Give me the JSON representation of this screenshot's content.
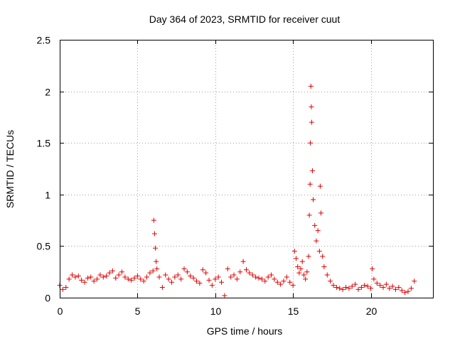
{
  "chart_data": {
    "type": "scatter",
    "title": "Day 364 of 2023, SRMTID for receiver cuut",
    "xlabel": "GPS time / hours",
    "ylabel": "SRMTID / TECUs",
    "xlim": [
      0,
      24
    ],
    "ylim": [
      0,
      2.5
    ],
    "xticks": [
      0,
      5,
      10,
      15,
      20
    ],
    "xtick_labels": [
      "0",
      "5",
      "10",
      "15",
      "20"
    ],
    "yticks": [
      0,
      0.5,
      1,
      1.5,
      2,
      2.5
    ],
    "ytick_labels": [
      "0",
      "0.5",
      "1",
      "1.5",
      "2",
      "2.5"
    ],
    "grid": true,
    "marker": "plus",
    "color": "#e00000",
    "series": [
      {
        "name": "SRMTID",
        "x": [
          0.0,
          0.2,
          0.4,
          0.6,
          0.8,
          1.0,
          1.2,
          1.4,
          1.6,
          1.8,
          2.0,
          2.2,
          2.4,
          2.6,
          2.8,
          3.0,
          3.2,
          3.4,
          3.6,
          3.8,
          4.0,
          4.2,
          4.4,
          4.6,
          4.8,
          5.0,
          5.2,
          5.4,
          5.6,
          5.8,
          6.0,
          6.05,
          6.1,
          6.15,
          6.2,
          6.25,
          6.4,
          6.6,
          6.8,
          7.0,
          7.2,
          7.4,
          7.6,
          7.8,
          8.0,
          8.2,
          8.4,
          8.6,
          8.8,
          9.0,
          9.2,
          9.4,
          9.6,
          9.8,
          10.0,
          10.2,
          10.4,
          10.6,
          10.8,
          11.0,
          11.2,
          11.4,
          11.6,
          11.8,
          12.0,
          12.2,
          12.4,
          12.6,
          12.8,
          13.0,
          13.2,
          13.4,
          13.6,
          13.8,
          14.0,
          14.2,
          14.4,
          14.6,
          14.8,
          15.0,
          15.1,
          15.2,
          15.3,
          15.4,
          15.5,
          15.6,
          15.7,
          15.8,
          15.9,
          16.0,
          16.05,
          16.1,
          16.12,
          16.15,
          16.18,
          16.2,
          16.25,
          16.3,
          16.4,
          16.5,
          16.6,
          16.7,
          16.75,
          16.8,
          16.9,
          17.0,
          17.2,
          17.4,
          17.6,
          17.8,
          18.0,
          18.2,
          18.4,
          18.6,
          18.8,
          19.0,
          19.2,
          19.4,
          19.6,
          19.8,
          20.0,
          20.1,
          20.2,
          20.4,
          20.6,
          20.8,
          21.0,
          21.2,
          21.4,
          21.6,
          21.8,
          22.0,
          22.2,
          22.4,
          22.6,
          22.8
        ],
        "y": [
          0.12,
          0.08,
          0.1,
          0.18,
          0.22,
          0.2,
          0.21,
          0.17,
          0.15,
          0.19,
          0.2,
          0.16,
          0.18,
          0.22,
          0.2,
          0.21,
          0.24,
          0.26,
          0.19,
          0.22,
          0.25,
          0.2,
          0.18,
          0.17,
          0.19,
          0.21,
          0.18,
          0.16,
          0.2,
          0.24,
          0.26,
          0.75,
          0.62,
          0.48,
          0.35,
          0.28,
          0.2,
          0.1,
          0.22,
          0.18,
          0.15,
          0.2,
          0.22,
          0.18,
          0.28,
          0.25,
          0.21,
          0.19,
          0.16,
          0.14,
          0.27,
          0.24,
          0.17,
          0.12,
          0.18,
          0.2,
          0.15,
          0.02,
          0.28,
          0.2,
          0.22,
          0.18,
          0.25,
          0.35,
          0.27,
          0.24,
          0.22,
          0.2,
          0.19,
          0.18,
          0.16,
          0.2,
          0.22,
          0.18,
          0.15,
          0.13,
          0.16,
          0.2,
          0.15,
          0.12,
          0.45,
          0.38,
          0.3,
          0.24,
          0.28,
          0.35,
          0.22,
          0.18,
          0.25,
          0.4,
          0.8,
          1.1,
          1.5,
          2.05,
          1.85,
          1.7,
          1.23,
          0.95,
          0.7,
          0.55,
          0.65,
          0.45,
          1.08,
          0.82,
          0.4,
          0.3,
          0.22,
          0.16,
          0.12,
          0.1,
          0.09,
          0.08,
          0.1,
          0.09,
          0.11,
          0.13,
          0.08,
          0.1,
          0.12,
          0.11,
          0.09,
          0.28,
          0.18,
          0.14,
          0.12,
          0.1,
          0.13,
          0.09,
          0.11,
          0.08,
          0.1,
          0.07,
          0.05,
          0.06,
          0.09,
          0.16
        ]
      }
    ]
  }
}
